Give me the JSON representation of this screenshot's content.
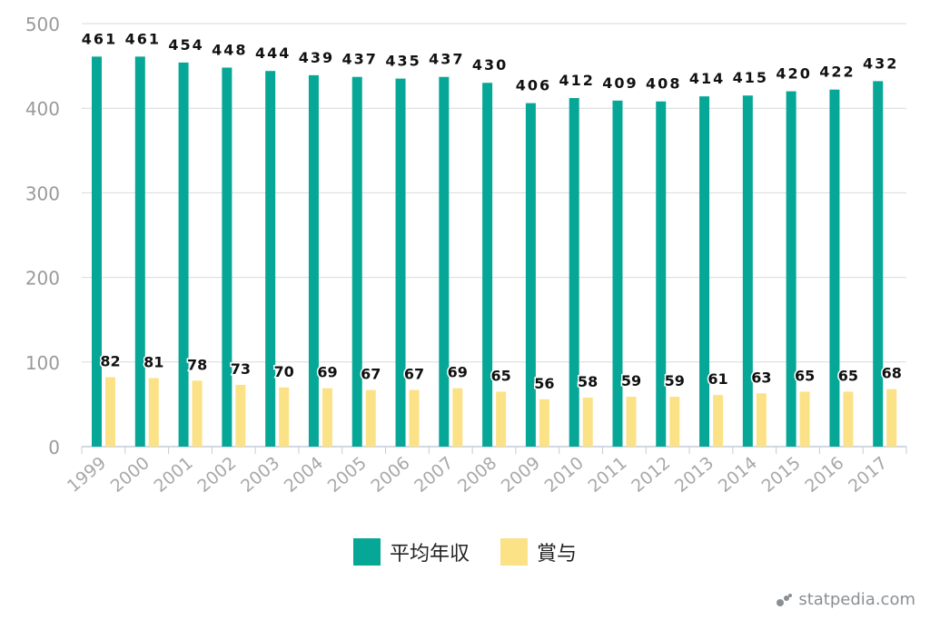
{
  "chart_data": {
    "type": "bar",
    "categories": [
      "1999",
      "2000",
      "2001",
      "2002",
      "2003",
      "2004",
      "2005",
      "2006",
      "2007",
      "2008",
      "2009",
      "2010",
      "2011",
      "2012",
      "2013",
      "2014",
      "2015",
      "2016",
      "2017"
    ],
    "series": [
      {
        "name": "平均年収",
        "color": "#06A796",
        "values": [
          461,
          461,
          454,
          448,
          444,
          439,
          437,
          435,
          437,
          430,
          406,
          412,
          409,
          408,
          414,
          415,
          420,
          422,
          432
        ]
      },
      {
        "name": "賞与",
        "color": "#FCE287",
        "values": [
          82,
          81,
          78,
          73,
          70,
          69,
          67,
          67,
          69,
          65,
          56,
          58,
          59,
          59,
          61,
          63,
          65,
          65,
          68
        ]
      }
    ],
    "ylim": [
      0,
      500
    ],
    "yticks": [
      0,
      100,
      200,
      300,
      400,
      500
    ],
    "grid": true,
    "legend_position": "bottom-center",
    "title": "",
    "xlabel": "",
    "ylabel": ""
  },
  "brand": {
    "text": "statpedia.com",
    "icon": "statpedia-logo-dots"
  }
}
